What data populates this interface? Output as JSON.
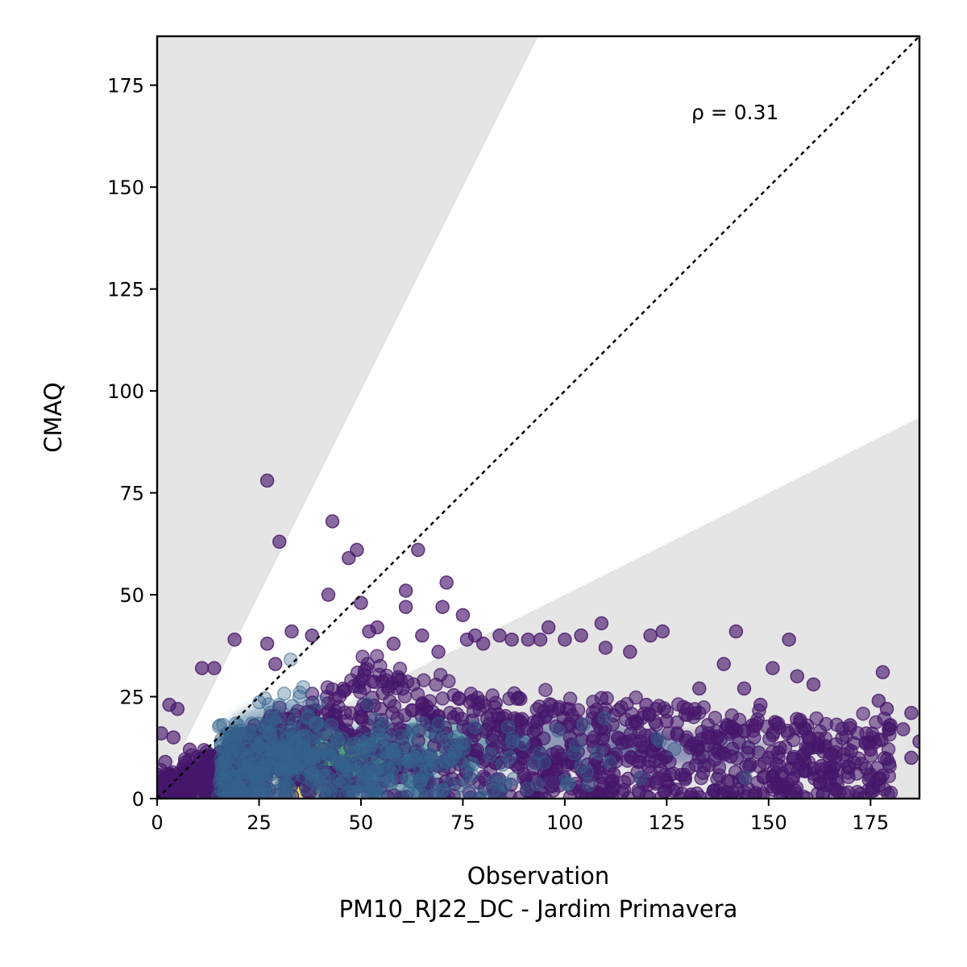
{
  "chart_data": {
    "type": "scatter",
    "xlabel": "Observation",
    "xlabel_sub": "PM10_RJ22_DC - Jardim Primavera",
    "ylabel": "CMAQ",
    "xlim": [
      0,
      187
    ],
    "ylim": [
      0,
      187
    ],
    "xticks": [
      "0",
      "25",
      "50",
      "75",
      "100",
      "125",
      "150",
      "175"
    ],
    "yticks": [
      "0",
      "25",
      "50",
      "75",
      "100",
      "125",
      "150",
      "175"
    ],
    "annotation": "ρ = 0.31",
    "correlation": 0.31,
    "identity_line": true,
    "factor_of_two_band": true,
    "grid": false,
    "colormap": "viridis (point density)",
    "colors": {
      "low_density": "#440154",
      "mid_density": "#21918c",
      "high_density": "#fde725",
      "band": "#e5e5e5"
    },
    "outlier_points": [
      [
        27,
        78
      ],
      [
        43,
        68
      ],
      [
        30,
        63
      ],
      [
        49,
        61
      ],
      [
        64,
        61
      ],
      [
        47,
        59
      ],
      [
        61,
        51
      ],
      [
        71,
        53
      ],
      [
        42,
        50
      ],
      [
        50,
        48
      ],
      [
        61,
        47
      ],
      [
        70,
        47
      ],
      [
        75,
        45
      ],
      [
        19,
        39
      ],
      [
        27,
        38
      ],
      [
        29,
        33
      ],
      [
        33,
        41
      ],
      [
        38,
        40
      ],
      [
        52,
        41
      ],
      [
        54,
        42
      ],
      [
        58,
        38
      ],
      [
        65,
        40
      ],
      [
        69,
        36
      ],
      [
        76,
        39
      ],
      [
        78,
        40
      ],
      [
        80,
        38
      ],
      [
        84,
        40
      ],
      [
        87,
        39
      ],
      [
        91,
        39
      ],
      [
        94,
        39
      ],
      [
        96,
        42
      ],
      [
        100,
        39
      ],
      [
        104,
        40
      ],
      [
        109,
        43
      ],
      [
        110,
        37
      ],
      [
        116,
        36
      ],
      [
        121,
        40
      ],
      [
        124,
        41
      ],
      [
        11,
        32
      ],
      [
        14,
        32
      ],
      [
        133,
        27
      ],
      [
        139,
        33
      ],
      [
        142,
        41
      ],
      [
        144,
        27
      ],
      [
        148,
        23
      ],
      [
        151,
        32
      ],
      [
        155,
        39
      ],
      [
        157,
        30
      ],
      [
        161,
        28
      ],
      [
        178,
        31
      ],
      [
        177,
        24
      ],
      [
        179,
        22
      ],
      [
        183,
        17
      ],
      [
        185,
        21
      ],
      [
        187,
        14
      ],
      [
        185,
        10
      ],
      [
        3,
        23
      ],
      [
        5,
        22
      ],
      [
        4,
        15
      ],
      [
        2,
        9
      ],
      [
        1,
        16
      ],
      [
        8,
        12
      ],
      [
        120,
        23
      ],
      [
        125,
        19
      ],
      [
        130,
        22
      ],
      [
        135,
        15
      ],
      [
        146,
        18
      ],
      [
        150,
        10
      ],
      [
        160,
        15
      ],
      [
        165,
        10
      ],
      [
        170,
        18
      ],
      [
        175,
        12
      ],
      [
        131,
        1
      ],
      [
        123,
        5
      ],
      [
        112,
        6
      ],
      [
        118,
        9
      ],
      [
        156,
        5
      ],
      [
        163,
        8
      ],
      [
        97,
        4
      ],
      [
        90,
        6
      ]
    ]
  }
}
